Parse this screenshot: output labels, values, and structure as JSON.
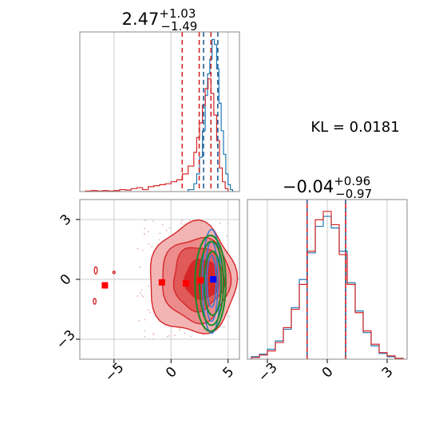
{
  "chart_data": {
    "type": "corner",
    "annotation": "KL = 0.0181",
    "colors": {
      "primary": "#d62728",
      "secondary": "#1f77b4",
      "contour_blue": "#3a7bd5",
      "ellipse": "#1a8a2a"
    },
    "parameters": [
      {
        "title_main": "2.47",
        "title_plus": "+1.03",
        "title_minus": "−1.49",
        "median": 2.47,
        "q_low": 0.98,
        "q_high": 3.5,
        "secondary_median": 3.5,
        "secondary_q": [
          2.85,
          4.1
        ],
        "range": [
          -8,
          6
        ],
        "ticks": [
          -5,
          0,
          5
        ],
        "tick_labels": [
          "−5",
          "0",
          "5"
        ]
      },
      {
        "title_main": "−0.04",
        "title_plus": "+0.96",
        "title_minus": "−0.97",
        "median": -0.04,
        "q_low": -1.01,
        "q_high": 0.92,
        "secondary_median": -0.04,
        "secondary_q": [
          -0.97,
          0.92
        ],
        "range": [
          -4,
          4
        ],
        "ticks": [
          -3,
          0,
          3
        ],
        "tick_labels": [
          "−3",
          "0",
          "3"
        ]
      }
    ],
    "hist1_red": {
      "bins": [
        -7.5,
        -7.0,
        -6.5,
        -6.0,
        -5.5,
        -5.0,
        -4.5,
        -4.0,
        -3.5,
        -3.0,
        -2.5,
        -2.0,
        -1.5,
        -1.0,
        -0.5,
        0.0,
        0.5,
        1.0,
        1.5,
        2.0,
        2.25,
        2.5,
        2.75,
        3.0,
        3.25,
        3.5,
        3.75,
        4.0,
        4.25,
        4.5,
        4.75,
        5.0
      ],
      "values": [
        0.5,
        1,
        0.5,
        1,
        0.5,
        1,
        2,
        1.5,
        3,
        4,
        2,
        5,
        6,
        7,
        8,
        10,
        12,
        18,
        26,
        40,
        55,
        70,
        88,
        105,
        115,
        100,
        78,
        52,
        24,
        10,
        3
      ]
    },
    "hist1_blue": {
      "bins": [
        1.5,
        2.0,
        2.25,
        2.5,
        2.75,
        3.0,
        3.2,
        3.4,
        3.6,
        3.8,
        4.0,
        4.2,
        4.4,
        4.6,
        4.8,
        5.0,
        5.2,
        5.4
      ],
      "values": [
        2,
        8,
        18,
        35,
        62,
        98,
        120,
        135,
        155,
        150,
        125,
        90,
        62,
        38,
        18,
        7,
        2
      ]
    },
    "hist2_red": {
      "bins": [
        -3.8,
        -3.4,
        -3.0,
        -2.6,
        -2.2,
        -1.8,
        -1.4,
        -1.0,
        -0.6,
        -0.2,
        0.2,
        0.6,
        1.0,
        1.4,
        1.8,
        2.2,
        2.6,
        3.0,
        3.4,
        3.8
      ],
      "values": [
        2,
        5,
        10,
        20,
        38,
        60,
        90,
        130,
        168,
        178,
        162,
        126,
        90,
        56,
        34,
        18,
        8,
        4,
        1
      ]
    },
    "hist2_blue": {
      "bins": [
        -3.8,
        -3.4,
        -3.0,
        -2.6,
        -2.2,
        -1.8,
        -1.4,
        -1.0,
        -0.6,
        -0.2,
        0.2,
        0.6,
        1.0,
        1.4,
        1.8,
        2.2,
        2.6,
        3.0,
        3.4,
        3.8
      ],
      "values": [
        3,
        6,
        12,
        22,
        36,
        62,
        96,
        128,
        160,
        172,
        158,
        130,
        92,
        58,
        32,
        16,
        7,
        3,
        1
      ]
    },
    "scatter_markers": [
      {
        "x": -5.8,
        "y": -0.3,
        "color": "#ff0000"
      },
      {
        "x": -0.8,
        "y": -0.15,
        "color": "#ff0000"
      },
      {
        "x": 1.3,
        "y": -0.2,
        "color": "#ff0000"
      },
      {
        "x": 2.6,
        "y": -0.05,
        "color": "#ff0000"
      },
      {
        "x": 3.7,
        "y": 0.0,
        "color": "#0000ff"
      }
    ],
    "grid": true
  }
}
